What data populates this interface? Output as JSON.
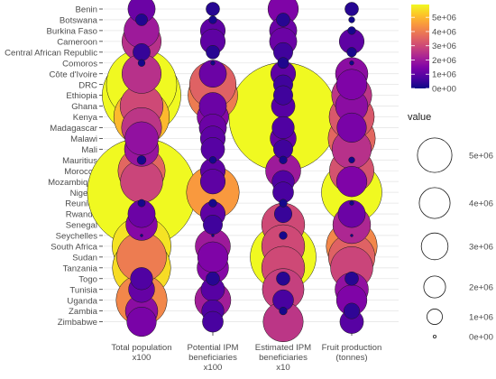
{
  "chart_data": {
    "type": "scatter",
    "encoding": "bubble size and colour both encode value",
    "categories_y": [
      "Benin",
      "Botswana",
      "Burkina Faso",
      "Cameroon",
      "Central African Republic",
      "Comoros",
      "Côte d'Ivoire",
      "DRC",
      "Ethiopia",
      "Ghana",
      "Kenya",
      "Madagascar",
      "Malawi",
      "Mali",
      "Mauritius",
      "Morocco",
      "Mozambique",
      "Nigeria",
      "Reunion",
      "Rwanda",
      "Senegal",
      "Seychelles",
      "South Africa",
      "Sudan",
      "Tanzania",
      "Togo",
      "Tunisia",
      "Uganda",
      "Zambia",
      "Zimbabwe"
    ],
    "categories_x": [
      "Total population x100",
      "Potential IPM beneficiaries x100",
      "Estimated IPM beneficiaries x10",
      "Fruit production (tonnes)"
    ],
    "series": [
      {
        "name": "Total population x100",
        "values": [
          1200000,
          230000,
          2000000,
          2500000,
          480000,
          80000,
          2500000,
          8000000,
          10000000,
          3000000,
          5000000,
          2600000,
          1800000,
          1900000,
          130000,
          3600000,
          2900000,
          19000000,
          90000,
          1200000,
          1600000,
          10000,
          5600000,
          4000000,
          5500000,
          800000,
          1100000,
          4200000,
          1700000,
          1400000
        ]
      },
      {
        "name": "Potential IPM beneficiaries x100",
        "values": [
          300000,
          100000,
          1000000,
          1000000,
          300000,
          30000,
          1200000,
          3500000,
          4000000,
          1200000,
          1600000,
          1200000,
          1000000,
          900000,
          80000,
          1000000,
          1000000,
          4500000,
          100000,
          1000000,
          600000,
          10000,
          2000000,
          1500000,
          1600000,
          300000,
          900000,
          2100000,
          800000,
          700000
        ]
      },
      {
        "name": "Estimated IPM beneficiaries x10",
        "values": [
          1500000,
          300000,
          1200000,
          1200000,
          600000,
          200000,
          1000000,
          600000,
          600000,
          900000,
          19000000,
          800000,
          1100000,
          600000,
          100000,
          2000000,
          800000,
          700000,
          100000,
          500000,
          3000000,
          100000,
          3000000,
          7000000,
          3000000,
          300000,
          2800000,
          700000,
          100000,
          2600000
        ]
      },
      {
        "name": "Fruit production (tonnes)",
        "values": [
          300000,
          60000,
          100000,
          1000000,
          150000,
          30000,
          1700000,
          1500000,
          2600000,
          1700000,
          3300000,
          1400000,
          3600000,
          2500000,
          60000,
          3200000,
          1500000,
          5900000,
          30000,
          1200000,
          2300000,
          10000,
          4200000,
          3500000,
          2900000,
          300000,
          1800000,
          1500000,
          400000,
          900000
        ]
      }
    ],
    "color_scale": {
      "type": "continuous",
      "palette": "plasma",
      "min": 0,
      "max": 5900000,
      "ticks": [
        "0e+00",
        "1e+06",
        "2e+06",
        "3e+06",
        "4e+06",
        "5e+06"
      ],
      "tick_values": [
        0,
        1000000,
        2000000,
        3000000,
        4000000,
        5000000
      ]
    },
    "size_legend": {
      "title": "value",
      "labels": [
        "5e+06",
        "4e+06",
        "3e+06",
        "2e+06",
        "1e+06",
        "0e+00"
      ],
      "values": [
        5000000,
        4000000,
        3000000,
        2000000,
        1000000,
        0
      ]
    },
    "grid": true,
    "legend_position": "right"
  }
}
